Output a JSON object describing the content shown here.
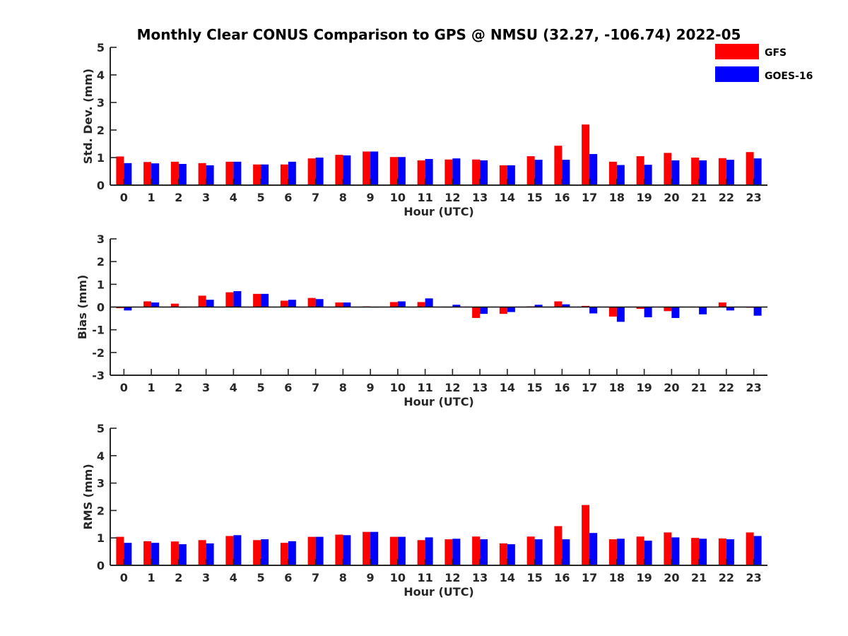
{
  "title": "Monthly Clear CONUS Comparison to GPS @ NMSU (32.27, -106.74) 2022-05",
  "legend": [
    {
      "name": "GFS",
      "color": "#ff0000"
    },
    {
      "name": "GOES-16",
      "color": "#0000ff"
    }
  ],
  "chart_data": [
    {
      "type": "bar",
      "title": "Monthly Clear CONUS Comparison to GPS @ NMSU (32.27, -106.74) 2022-05",
      "xlabel": "Hour (UTC)",
      "ylabel": "Std. Dev. (mm)",
      "ylim": [
        0,
        5
      ],
      "yticks": [
        0,
        1,
        2,
        3,
        4,
        5
      ],
      "categories": [
        "0",
        "1",
        "2",
        "3",
        "4",
        "5",
        "6",
        "7",
        "8",
        "9",
        "10",
        "11",
        "12",
        "13",
        "14",
        "15",
        "16",
        "17",
        "18",
        "19",
        "20",
        "21",
        "22",
        "23"
      ],
      "series": [
        {
          "name": "GFS",
          "values": [
            1.04,
            0.84,
            0.85,
            0.8,
            0.85,
            0.75,
            0.75,
            0.97,
            1.1,
            1.22,
            1.02,
            0.9,
            0.93,
            0.93,
            0.72,
            1.05,
            1.43,
            2.2,
            0.85,
            1.05,
            1.17,
            1.0,
            0.98,
            1.2
          ]
        },
        {
          "name": "GOES-16",
          "values": [
            0.8,
            0.79,
            0.77,
            0.72,
            0.85,
            0.75,
            0.85,
            1.0,
            1.08,
            1.22,
            1.02,
            0.95,
            0.97,
            0.9,
            0.72,
            0.92,
            0.92,
            1.13,
            0.73,
            0.74,
            0.9,
            0.9,
            0.92,
            0.97
          ]
        }
      ]
    },
    {
      "type": "bar",
      "xlabel": "Hour (UTC)",
      "ylabel": "Bias (mm)",
      "ylim": [
        -3,
        3
      ],
      "yticks": [
        -3,
        -2,
        -1,
        0,
        1,
        2,
        3
      ],
      "categories": [
        "0",
        "1",
        "2",
        "3",
        "4",
        "5",
        "6",
        "7",
        "8",
        "9",
        "10",
        "11",
        "12",
        "13",
        "14",
        "15",
        "16",
        "17",
        "18",
        "19",
        "20",
        "21",
        "22",
        "23"
      ],
      "series": [
        {
          "name": "GFS",
          "values": [
            -0.05,
            0.25,
            0.15,
            0.5,
            0.65,
            0.58,
            0.28,
            0.4,
            0.2,
            0.03,
            0.22,
            0.22,
            0.0,
            -0.48,
            -0.3,
            0.03,
            0.25,
            0.05,
            -0.42,
            -0.08,
            -0.18,
            0.0,
            0.2,
            -0.03
          ]
        },
        {
          "name": "GOES-16",
          "values": [
            -0.15,
            0.2,
            0.0,
            0.32,
            0.7,
            0.58,
            0.32,
            0.35,
            0.2,
            0.0,
            0.25,
            0.38,
            0.1,
            -0.3,
            -0.22,
            0.1,
            0.12,
            -0.28,
            -0.65,
            -0.45,
            -0.48,
            -0.32,
            -0.15,
            -0.38
          ]
        }
      ]
    },
    {
      "type": "bar",
      "xlabel": "Hour (UTC)",
      "ylabel": "RMS (mm)",
      "ylim": [
        0,
        5
      ],
      "yticks": [
        0,
        1,
        2,
        3,
        4,
        5
      ],
      "categories": [
        "0",
        "1",
        "2",
        "3",
        "4",
        "5",
        "6",
        "7",
        "8",
        "9",
        "10",
        "11",
        "12",
        "13",
        "14",
        "15",
        "16",
        "17",
        "18",
        "19",
        "20",
        "21",
        "22",
        "23"
      ],
      "series": [
        {
          "name": "GFS",
          "values": [
            1.04,
            0.88,
            0.87,
            0.92,
            1.07,
            0.92,
            0.82,
            1.04,
            1.12,
            1.22,
            1.04,
            0.92,
            0.95,
            1.05,
            0.8,
            1.05,
            1.43,
            2.2,
            0.95,
            1.05,
            1.2,
            1.0,
            0.98,
            1.2
          ]
        },
        {
          "name": "GOES-16",
          "values": [
            0.82,
            0.82,
            0.77,
            0.8,
            1.1,
            0.95,
            0.88,
            1.04,
            1.1,
            1.22,
            1.04,
            1.02,
            0.97,
            0.95,
            0.77,
            0.95,
            0.95,
            1.18,
            0.97,
            0.9,
            1.02,
            0.97,
            0.95,
            1.07
          ]
        }
      ]
    }
  ]
}
